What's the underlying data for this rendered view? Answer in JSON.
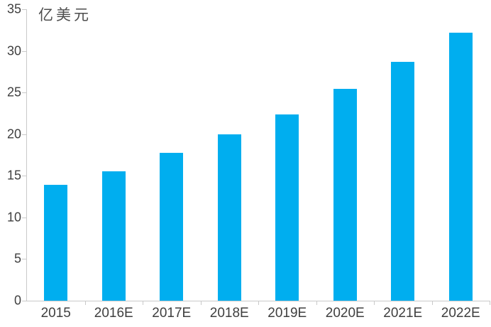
{
  "colors": {
    "bar": "#00AEEF",
    "axis": "#C9C9C9",
    "text": "#3F3F3F",
    "background": "#FFFFFF"
  },
  "chart_data": {
    "type": "bar",
    "title": "",
    "unit_label": "亿美元",
    "xlabel": "",
    "ylabel": "亿美元",
    "categories": [
      "2015",
      "2016E",
      "2017E",
      "2018E",
      "2019E",
      "2020E",
      "2021E",
      "2022E"
    ],
    "values": [
      13.9,
      15.5,
      17.8,
      20.0,
      22.4,
      25.4,
      28.7,
      32.2
    ],
    "ylim": [
      0,
      35
    ],
    "yticks": [
      0,
      5,
      10,
      15,
      20,
      25,
      30,
      35
    ],
    "grid": false,
    "legend": "none",
    "bar_color": "#00AEEF"
  }
}
